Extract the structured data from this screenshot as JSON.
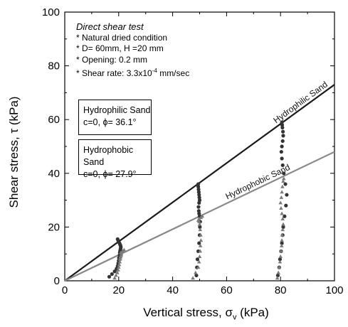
{
  "chart_data": {
    "type": "scatter",
    "xlabel": "Vertical  stress, σv (kPa)",
    "ylabel": "Shear stress, τ (kPa)",
    "xlim": [
      0,
      100
    ],
    "ylim": [
      0,
      100
    ],
    "xticks": [
      "0",
      "20",
      "40",
      "60",
      "80",
      "100"
    ],
    "yticks": [
      "0",
      "20",
      "40",
      "60",
      "80",
      "100"
    ],
    "grid": false,
    "annotations": {
      "title": "Direct shear test",
      "lines": [
        "* Natural dried condition",
        "* D= 60mm, H =20 mm",
        "* Opening: 0.2 mm",
        "* Shear rate: 3.3x10",
        "-4",
        " mm/sec"
      ]
    },
    "fit_boxes": [
      {
        "name": "Hydrophilic Sand",
        "params": "c=0, ϕ= 36.1°"
      },
      {
        "name": "Hydrophobic Sand",
        "params": "c=0, ϕ= 27.9°"
      }
    ],
    "fit_lines": [
      {
        "label": "Hydrophilic Sand",
        "x": [
          0,
          100
        ],
        "y": [
          0,
          73
        ],
        "color": "#1a1a1a"
      },
      {
        "label": "Hydrophobic Sand",
        "x": [
          0,
          100
        ],
        "y": [
          0,
          48
        ],
        "color": "#888888"
      }
    ],
    "series": [
      {
        "name": "Hydrophilic Sand",
        "color": "#333333",
        "x": [
          16.5,
          17.5,
          18.5,
          19.2,
          19.6,
          19.8,
          20.0,
          20.1,
          20.3,
          20.4,
          20.5,
          20.6,
          20.7,
          20.8,
          20.7,
          20.5,
          20.3,
          20.0,
          19.8,
          19.6,
          48.8,
          49.0,
          49.2,
          49.5,
          49.8,
          50.0,
          50.1,
          50.2,
          50.0,
          49.8,
          49.7,
          49.6,
          49.8,
          50.0,
          49.9,
          49.8,
          49.7,
          49.6,
          49.5,
          49.5,
          79.0,
          79.5,
          79.8,
          80.2,
          80.5,
          80.8,
          81.0,
          81.5,
          82.0,
          82.3,
          81.8,
          81.2,
          80.8,
          80.5,
          80.3,
          80.5,
          80.8,
          81.0,
          80.9,
          80.7,
          80.6,
          80.5
        ],
        "y": [
          1.5,
          2.5,
          3.5,
          4.5,
          5.5,
          6.5,
          7.5,
          8.5,
          9.5,
          10.5,
          11.0,
          11.5,
          12.0,
          12.5,
          13.0,
          13.5,
          14.0,
          14.5,
          15.0,
          15.5,
          2.0,
          5.0,
          8.0,
          11.0,
          14.0,
          17.0,
          20.0,
          22.0,
          24.0,
          25.0,
          26.0,
          27.5,
          29.0,
          30.0,
          31.0,
          32.0,
          33.0,
          34.0,
          35.0,
          36.0,
          2.0,
          5.0,
          8.0,
          11.0,
          14.0,
          17.0,
          20.0,
          24.0,
          28.0,
          32.0,
          36.0,
          40.0,
          43.0,
          45.5,
          48.0,
          50.0,
          52.0,
          54.0,
          55.5,
          57.0,
          58.0,
          59.0
        ]
      },
      {
        "name": "Hydrophobic Sand",
        "color": "#7a7a7a",
        "x": [
          18.5,
          19.0,
          19.5,
          19.8,
          20.0,
          20.2,
          20.4,
          20.5,
          20.6,
          20.7,
          20.9,
          21.0,
          20.8,
          21.5,
          22.0,
          47.5,
          48.5,
          49.5,
          49.8,
          50.0,
          50.2,
          50.3,
          50.5,
          50.4,
          50.2,
          50.0,
          49.8,
          49.5,
          49.8,
          50.5,
          51.0,
          78.8,
          79.2,
          79.5,
          79.8,
          80.0,
          80.2,
          80.4,
          80.5,
          80.6,
          80.8,
          81.0,
          80.8,
          80.5,
          80.2,
          80.0,
          80.3,
          80.5,
          80.7,
          81.0,
          81.2
        ],
        "y": [
          1.0,
          2.0,
          3.0,
          4.0,
          5.0,
          6.0,
          7.0,
          8.0,
          8.5,
          9.0,
          9.5,
          10.0,
          10.5,
          11.0,
          11.5,
          1.0,
          3.0,
          5.0,
          7.0,
          9.0,
          11.0,
          13.0,
          15.0,
          17.0,
          19.0,
          21.0,
          22.0,
          22.5,
          23.0,
          23.5,
          24.0,
          1.0,
          3.0,
          5.0,
          7.0,
          9.0,
          11.0,
          13.0,
          15.0,
          17.0,
          19.0,
          21.0,
          23.0,
          25.0,
          27.0,
          29.0,
          31.0,
          33.0,
          35.0,
          37.0,
          38.0
        ]
      }
    ]
  }
}
